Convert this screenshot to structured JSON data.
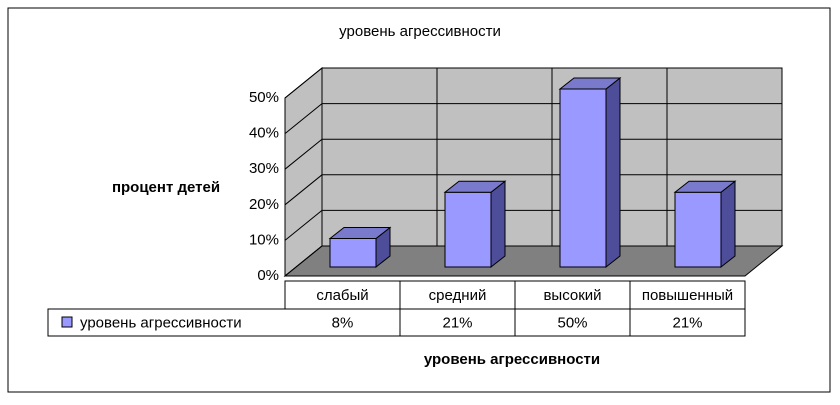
{
  "chart_data": {
    "type": "bar3d",
    "title": "уровень агрессивности",
    "y_label": "процент детей",
    "x_label": "уровень агрессивности",
    "categories": [
      "слабый",
      "средний",
      "высокий",
      "повышенный"
    ],
    "series": [
      {
        "name": "уровень агрессивности",
        "color": "#9999ff",
        "values": [
          8,
          21,
          50,
          21
        ],
        "value_labels": [
          "8%",
          "21%",
          "50%",
          "21%"
        ]
      }
    ],
    "ylim": [
      0,
      50
    ],
    "yticks": [
      {
        "value": 0,
        "label": "0%"
      },
      {
        "value": 10,
        "label": "10%"
      },
      {
        "value": 20,
        "label": "20%"
      },
      {
        "value": 30,
        "label": "30%"
      },
      {
        "value": 40,
        "label": "40%"
      },
      {
        "value": 50,
        "label": "50%"
      }
    ],
    "grid": true
  }
}
